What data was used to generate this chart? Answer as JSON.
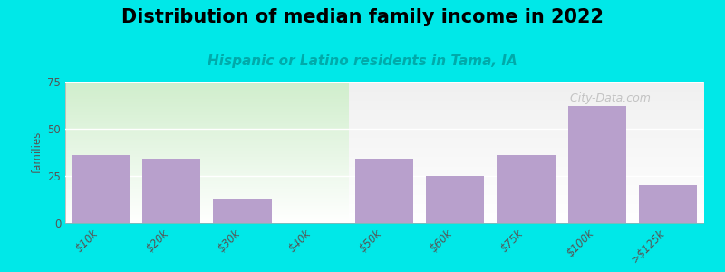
{
  "title": "Distribution of median family income in 2022",
  "subtitle": "Hispanic or Latino residents in Tama, IA",
  "categories": [
    "$10k",
    "$20k",
    "$30k",
    "$40k",
    "$50k",
    "$60k",
    "$75k",
    "$100k",
    ">$125k"
  ],
  "values": [
    36,
    34,
    13,
    0,
    34,
    25,
    36,
    62,
    20
  ],
  "bar_color": "#b8a0cc",
  "highlight_bg_color": "#d8eec0",
  "highlight_index": 3,
  "background_color": "#00e8e8",
  "plot_bg_left_color": "#d8eec0",
  "plot_bg_right_color": "#f0f0f0",
  "ylabel": "families",
  "ylim": [
    0,
    75
  ],
  "yticks": [
    0,
    25,
    50,
    75
  ],
  "title_fontsize": 15,
  "subtitle_fontsize": 11,
  "watermark": "  City-Data.com"
}
